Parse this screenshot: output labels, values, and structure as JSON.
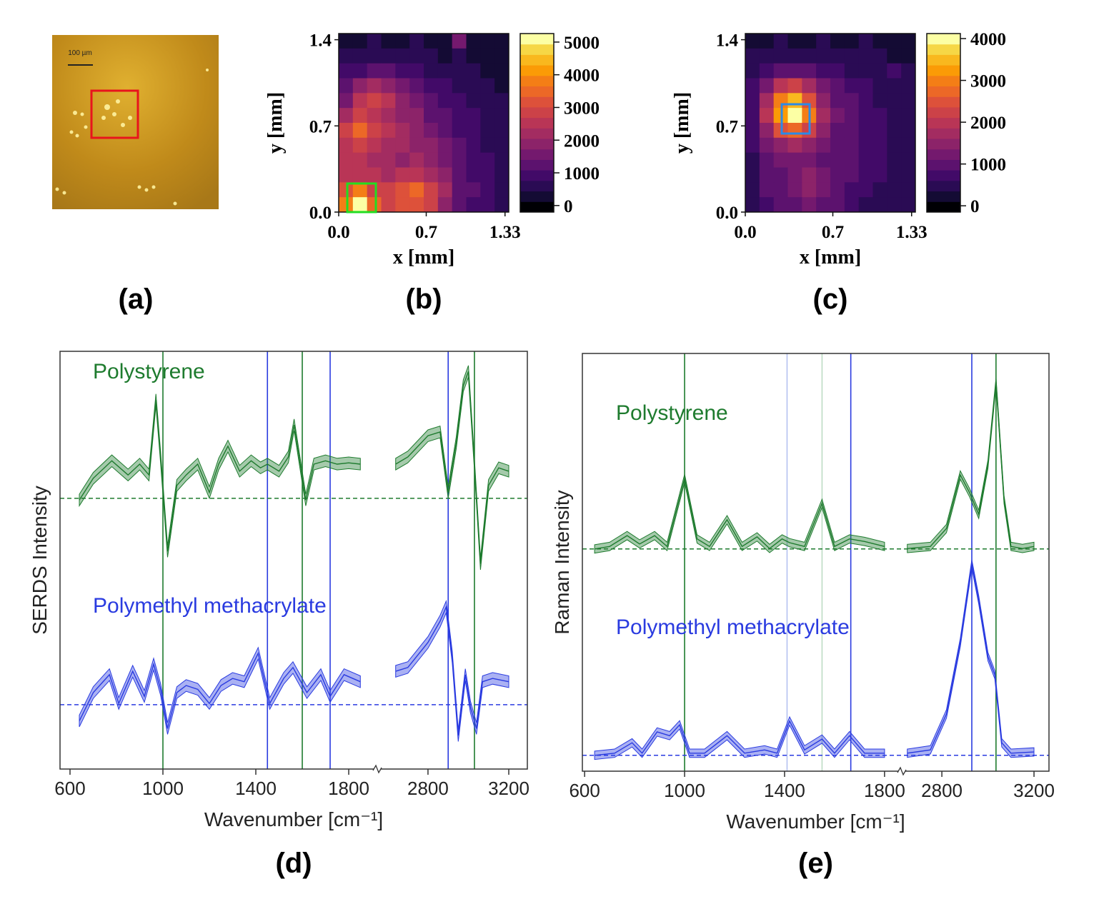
{
  "chart_data": [
    {
      "type": "image",
      "scale_bar_label": "100 µm",
      "panel_label": "(a)"
    },
    {
      "type": "heatmap",
      "panel_label": "(b)",
      "xlabel": "x [mm]",
      "ylabel": "y [mm]",
      "xlim": [
        0,
        1.36
      ],
      "ylim": [
        0,
        1.45
      ],
      "xticks": [
        {
          "value": 0,
          "label": "0.0"
        },
        0.7,
        1.33
      ],
      "yticks": [
        {
          "value": 0,
          "label": "0.0"
        },
        0.7,
        1.4
      ],
      "zlim": [
        -200,
        5260
      ],
      "colorbar_ticks": [
        0,
        1000,
        2000,
        3000,
        4000,
        5000
      ],
      "colormap": [
        "#000004",
        "#140b34",
        "#2a0b54",
        "#420a68",
        "#5c126e",
        "#74196e",
        "#8c2369",
        "#a32c61",
        "#b93556",
        "#cc4248",
        "#dd513a",
        "#ec6827",
        "#f47e16",
        "#fb9b06",
        "#f9b81e",
        "#f6d746",
        "#fcffa4"
      ],
      "z": [
        [
          400,
          300,
          500,
          300,
          400,
          700,
          400,
          300,
          1500,
          400,
          300,
          300
        ],
        [
          600,
          500,
          700,
          600,
          500,
          600,
          500,
          400,
          500,
          400,
          300,
          400
        ],
        [
          900,
          1000,
          1300,
          1100,
          900,
          800,
          700,
          600,
          600,
          500,
          400,
          400
        ],
        [
          1200,
          1800,
          2200,
          2000,
          1500,
          1200,
          900,
          800,
          700,
          600,
          500,
          400
        ],
        [
          1600,
          2400,
          2800,
          2500,
          2000,
          1600,
          1300,
          1000,
          800,
          700,
          600,
          500
        ],
        [
          2200,
          2800,
          2600,
          2300,
          2000,
          1800,
          1400,
          1100,
          900,
          800,
          600,
          500
        ],
        [
          2800,
          3400,
          2800,
          2400,
          2200,
          1900,
          1600,
          1300,
          1000,
          800,
          700,
          500
        ],
        [
          2600,
          3000,
          2600,
          2300,
          2100,
          1900,
          1800,
          1500,
          1100,
          900,
          700,
          600
        ],
        [
          2400,
          2500,
          2300,
          2200,
          2000,
          2200,
          1900,
          1600,
          1200,
          1000,
          800,
          600
        ],
        [
          2500,
          2600,
          2400,
          2300,
          2400,
          2600,
          2300,
          1800,
          1300,
          1000,
          800,
          700
        ],
        [
          3300,
          3800,
          3000,
          2800,
          3300,
          3500,
          3000,
          2200,
          1400,
          1100,
          900,
          700
        ],
        [
          3800,
          5000,
          3600,
          3000,
          3200,
          3100,
          2800,
          1900,
          1300,
          1000,
          800,
          700
        ]
      ]
    },
    {
      "type": "heatmap",
      "panel_label": "(c)",
      "xlabel": "x [mm]",
      "ylabel": "y [mm]",
      "xlim": [
        0,
        1.36
      ],
      "ylim": [
        0,
        1.45
      ],
      "xticks": [
        {
          "value": 0,
          "label": "0.0"
        },
        0.7,
        1.33
      ],
      "yticks": [
        {
          "value": 0,
          "label": "0.0"
        },
        0.7,
        1.4
      ],
      "zlim": [
        -150,
        4120
      ],
      "colorbar_ticks": [
        0,
        1000,
        2000,
        3000,
        4000
      ],
      "colormap": [
        "#000004",
        "#140b34",
        "#2a0b54",
        "#420a68",
        "#5c126e",
        "#74196e",
        "#8c2369",
        "#a32c61",
        "#b93556",
        "#cc4248",
        "#dd513a",
        "#ec6827",
        "#f47e16",
        "#fb9b06",
        "#f9b81e",
        "#f6d746",
        "#fcffa4"
      ],
      "z": [
        [
          300,
          300,
          400,
          300,
          300,
          400,
          300,
          300,
          400,
          300,
          300,
          300
        ],
        [
          400,
          500,
          500,
          600,
          500,
          500,
          400,
          500,
          400,
          400,
          300,
          300
        ],
        [
          500,
          700,
          900,
          1000,
          900,
          800,
          700,
          600,
          600,
          500,
          700,
          400
        ],
        [
          700,
          1300,
          2000,
          2200,
          1800,
          1300,
          900,
          800,
          700,
          600,
          500,
          500
        ],
        [
          800,
          1800,
          3000,
          3400,
          2600,
          1600,
          1100,
          900,
          800,
          600,
          600,
          500
        ],
        [
          800,
          1900,
          3200,
          4000,
          2900,
          1700,
          1200,
          1000,
          800,
          700,
          600,
          500
        ],
        [
          700,
          1500,
          2400,
          2700,
          2300,
          1500,
          1100,
          900,
          800,
          700,
          600,
          500
        ],
        [
          700,
          1200,
          1500,
          1700,
          1500,
          1200,
          1000,
          900,
          800,
          700,
          600,
          500
        ],
        [
          600,
          1000,
          1200,
          1300,
          1300,
          1100,
          1000,
          900,
          800,
          700,
          600,
          500
        ],
        [
          600,
          900,
          1100,
          1300,
          1400,
          1200,
          1000,
          900,
          700,
          700,
          600,
          500
        ],
        [
          600,
          900,
          1000,
          1200,
          1500,
          1300,
          1000,
          800,
          700,
          600,
          600,
          500
        ],
        [
          500,
          800,
          900,
          1100,
          1300,
          1100,
          900,
          700,
          600,
          500,
          500,
          400
        ]
      ]
    },
    {
      "type": "line",
      "panel_label": "(d)",
      "xlabel": "Wavenumber [cm⁻¹]",
      "ylabel": "SERDS Intensity",
      "x_segments": [
        {
          "xlim": [
            557,
            1923
          ],
          "xticks": [
            600,
            1000,
            1400,
            1800
          ]
        },
        {
          "xlim": [
            2549,
            3292
          ],
          "xticks": [
            2800,
            3200
          ]
        }
      ],
      "ylim": [
        0,
        100
      ],
      "reference_lines": [
        {
          "x": 1000,
          "color": "#1e7b2e"
        },
        {
          "x": 1450,
          "color": "#2a3be0"
        },
        {
          "x": 1600,
          "color": "#1e7b2e"
        },
        {
          "x": 1720,
          "color": "#2a3be0"
        },
        {
          "x": 2900,
          "color": "#2a3be0"
        },
        {
          "x": 3030,
          "color": "#1e7b2e"
        }
      ],
      "series": [
        {
          "name": "Polystyrene",
          "color": "#1e7b2e",
          "baseline": 64.8,
          "spread": 1.4,
          "x": [
            640,
            700,
            780,
            850,
            900,
            940,
            970,
            990,
            1020,
            1060,
            1100,
            1150,
            1200,
            1240,
            1280,
            1330,
            1380,
            1420,
            1450,
            1500,
            1540,
            1565,
            1615,
            1650,
            1700,
            1750,
            1800,
            1850,
            null,
            2640,
            2700,
            2800,
            2860,
            2900,
            2940,
            2975,
            3000,
            3030,
            3060,
            3100,
            3150,
            3200
          ],
          "values": [
            64.4,
            69.6,
            73.8,
            70.4,
            73.0,
            70.4,
            88.4,
            74.7,
            52.1,
            67.9,
            70.4,
            73.0,
            66.2,
            73.0,
            77.3,
            71.3,
            73.8,
            72.1,
            73.0,
            71.3,
            74.7,
            82.4,
            64.4,
            73.0,
            73.8,
            73.0,
            73.3,
            73.0,
            null,
            73.0,
            74.7,
            79.8,
            80.7,
            66.2,
            78.1,
            91.8,
            95.2,
            73.0,
            49.1,
            67.9,
            72.1,
            71.3
          ]
        },
        {
          "name": "Polymethyl methacrylate",
          "color": "#2a3be0",
          "baseline": 15.4,
          "spread": 1.4,
          "x": [
            640,
            700,
            770,
            810,
            870,
            920,
            960,
            990,
            1020,
            1060,
            1100,
            1150,
            1200,
            1250,
            1300,
            1350,
            1410,
            1460,
            1520,
            1560,
            1620,
            1680,
            1720,
            1780,
            1850,
            null,
            2640,
            2700,
            2800,
            2860,
            2890,
            2920,
            2950,
            2985,
            3010,
            3040,
            3070,
            3120,
            3200
          ],
          "values": [
            11.5,
            18.3,
            22.6,
            15.7,
            23.4,
            17.4,
            25.1,
            19.1,
            9.7,
            18.3,
            20.0,
            19.1,
            15.7,
            20.0,
            21.7,
            20.9,
            27.7,
            15.7,
            21.7,
            24.3,
            18.3,
            22.6,
            17.4,
            22.6,
            20.9,
            null,
            23.4,
            24.3,
            30.3,
            35.4,
            38.8,
            26.8,
            8.0,
            22.6,
            14.9,
            9.7,
            20.9,
            21.7,
            20.9
          ]
        }
      ]
    },
    {
      "type": "line",
      "panel_label": "(e)",
      "xlabel": "Wavenumber [cm⁻¹]",
      "ylabel": "Raman Intensity",
      "x_segments": [
        {
          "xlim": [
            591,
            1869
          ],
          "xticks": [
            600,
            1000,
            1400,
            1800
          ]
        },
        {
          "xlim": [
            2626,
            3265
          ],
          "xticks": [
            2800,
            3200
          ]
        }
      ],
      "ylim": [
        0,
        100
      ],
      "reference_lines": [
        {
          "x": 1000,
          "color": "#1e7b2e"
        },
        {
          "x": 1410,
          "color": "#b4c0f0"
        },
        {
          "x": 1550,
          "color": "#bcdcc4"
        },
        {
          "x": 1665,
          "color": "#2a3be0"
        },
        {
          "x": 2930,
          "color": "#2a3be0"
        },
        {
          "x": 3035,
          "color": "#1e7b2e"
        }
      ],
      "series": [
        {
          "name": "Polystyrene",
          "color": "#1e7b2e",
          "baseline": 53.2,
          "spread": 1.0,
          "x": [
            640,
            700,
            770,
            820,
            880,
            930,
            1000,
            1050,
            1100,
            1170,
            1230,
            1290,
            1340,
            1390,
            1420,
            1480,
            1550,
            1600,
            1660,
            1720,
            1800,
            null,
            2650,
            2750,
            2820,
            2880,
            2920,
            2960,
            3000,
            3035,
            3070,
            3100,
            3150,
            3200
          ],
          "values": [
            53.2,
            53.8,
            56.4,
            54.4,
            56.4,
            53.8,
            70.1,
            55.6,
            53.8,
            60.2,
            53.8,
            56.1,
            53.3,
            55.6,
            54.7,
            53.8,
            64.1,
            53.8,
            55.6,
            55.0,
            53.8,
            null,
            53.3,
            53.8,
            58.1,
            70.9,
            66.7,
            61.5,
            73.5,
            93.2,
            65.0,
            53.8,
            53.3,
            53.8
          ]
        },
        {
          "name": "Polymethyl methacrylate",
          "color": "#2a3be0",
          "baseline": 3.8,
          "spread": 1.0,
          "x": [
            640,
            720,
            790,
            830,
            890,
            940,
            980,
            1020,
            1080,
            1170,
            1240,
            1320,
            1370,
            1420,
            1480,
            1550,
            1600,
            1660,
            1720,
            1800,
            null,
            2650,
            2750,
            2820,
            2880,
            2930,
            2960,
            3000,
            3030,
            3060,
            3100,
            3200
          ],
          "values": [
            3.8,
            4.3,
            6.8,
            4.3,
            9.4,
            8.5,
            11.1,
            4.3,
            4.3,
            8.5,
            4.3,
            5.1,
            4.3,
            12.0,
            5.1,
            7.7,
            4.3,
            8.5,
            4.3,
            4.3,
            null,
            4.3,
            5.1,
            13.7,
            30.8,
            49.6,
            41.0,
            27.4,
            23.1,
            6.8,
            4.3,
            4.6
          ]
        }
      ]
    }
  ]
}
